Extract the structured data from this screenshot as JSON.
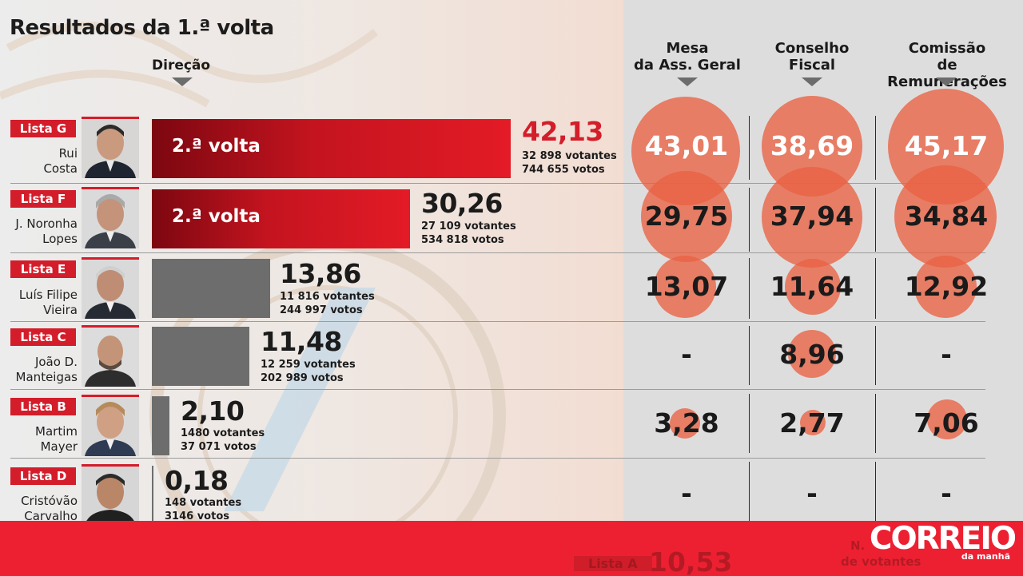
{
  "title": "Resultados da 1.ª volta",
  "direction_label": "Direção",
  "columns": {
    "mesa": [
      "Mesa",
      "da Ass. Geral"
    ],
    "conselho": [
      "Conselho",
      "Fiscal"
    ],
    "comissao": [
      "Comissão",
      "de Remunerações"
    ]
  },
  "round2_label": "2.ª volta",
  "candidates": [
    {
      "list": "Lista G",
      "name": [
        "Rui",
        "Costa"
      ],
      "pct": "42,13",
      "voters": "32 898 votantes",
      "votes": "744 655 votos",
      "mesa": "43,01",
      "conselho": "38,69",
      "comissao": "45,17"
    },
    {
      "list": "Lista F",
      "name": [
        "J. Noronha",
        "Lopes"
      ],
      "pct": "30,26",
      "voters": "27 109 votantes",
      "votes": "534 818 votos",
      "mesa": "29,75",
      "conselho": "37,94",
      "comissao": "34,84"
    },
    {
      "list": "Lista E",
      "name": [
        "Luís Filipe",
        "Vieira"
      ],
      "pct": "13,86",
      "voters": "11 816 votantes",
      "votes": "244 997 votos",
      "mesa": "13,07",
      "conselho": "11,64",
      "comissao": "12,92"
    },
    {
      "list": "Lista C",
      "name": [
        "João D.",
        "Manteigas"
      ],
      "pct": "11,48",
      "voters": "12 259 votantes",
      "votes": "202 989 votos",
      "mesa": "-",
      "conselho": "8,96",
      "comissao": "-"
    },
    {
      "list": "Lista B",
      "name": [
        "Martim",
        "Mayer"
      ],
      "pct": "2,10",
      "voters": "1480 votantes",
      "votes": "37 071 votos",
      "mesa": "3,28",
      "conselho": "2,77",
      "comissao": "7,06"
    },
    {
      "list": "Lista D",
      "name": [
        "Cristóvão",
        "Carvalho"
      ],
      "pct": "0,18",
      "voters": "148 votantes",
      "votes": "3146 votos",
      "mesa": "-",
      "conselho": "-",
      "comissao": "-"
    }
  ],
  "footer": {
    "partial_list": "Lista A",
    "partial_pct": "10,53",
    "partial_text_1": "N.",
    "partial_text_2": "de votantes",
    "logo": "CORREIO",
    "logo_sub": "da manhã"
  },
  "colors": {
    "red": "#d41d2a",
    "circle": "#e96242",
    "grey_bar": "#6d6d6d",
    "footer": "#ed2032"
  },
  "chart_data": {
    "type": "bar",
    "title": "Resultados da 1.ª volta",
    "xlabel": "Direção",
    "ylabel": "",
    "categories": [
      "Lista G",
      "Lista F",
      "Lista E",
      "Lista C",
      "Lista B",
      "Lista D"
    ],
    "series": [
      {
        "name": "Direção",
        "values": [
          42.13,
          30.26,
          13.86,
          11.48,
          2.1,
          0.18
        ]
      },
      {
        "name": "Mesa da Ass. Geral",
        "values": [
          43.01,
          29.75,
          13.07,
          null,
          3.28,
          null
        ]
      },
      {
        "name": "Conselho Fiscal",
        "values": [
          38.69,
          37.94,
          11.64,
          8.96,
          2.77,
          null
        ]
      },
      {
        "name": "Comissão de Remunerações",
        "values": [
          45.17,
          34.84,
          12.92,
          null,
          7.06,
          null
        ]
      }
    ],
    "ylim": [
      0,
      45
    ]
  }
}
